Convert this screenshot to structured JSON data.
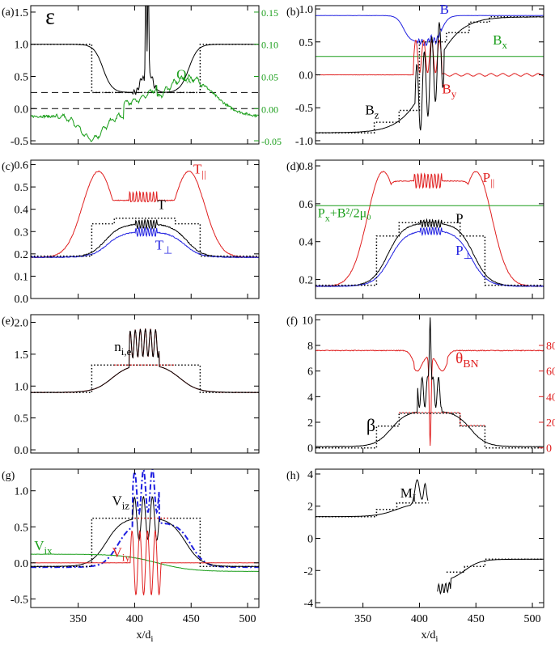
{
  "figure": {
    "xlabel": "x/d",
    "xlabel_sub": "i",
    "x_ticks": [
      "350",
      "400",
      "450",
      "500"
    ],
    "xlim": [
      308,
      510
    ]
  },
  "chart_data": [
    {
      "id": "a",
      "panel_label": "(a)",
      "type": "line",
      "ylim": [
        -0.55,
        1.6
      ],
      "y_ticks": [
        "-0.5",
        "0.0",
        "0.5",
        "1.0",
        "1.5"
      ],
      "y2lim": [
        -0.055,
        0.16
      ],
      "y2_ticks": [
        "-0.05",
        "0.00",
        "0.05",
        "0.10",
        "0.15"
      ],
      "y2_color": "#1a9e1a",
      "annotations": [
        {
          "text": "ε",
          "sub": "",
          "color": "#000",
          "x": 321,
          "y": 1.32,
          "size": 28
        },
        {
          "text": "Q",
          "sub": "x",
          "color": "#1a9e1a",
          "x": 437,
          "y": 0.46,
          "size": 17
        }
      ],
      "series": [
        {
          "style": "black",
          "kind": "tanh_well",
          "base": 1.0,
          "floor": 0.25,
          "x1": 372,
          "x2": 448,
          "width": 8,
          "spikes": [
            [
              405,
              0.05,
              2
            ],
            [
              407,
              0.2,
              2
            ],
            [
              410,
              2.0,
              0.5
            ],
            [
              412,
              1.8,
              0.5
            ],
            [
              414,
              0.25,
              2
            ],
            [
              418,
              0.05,
              3
            ]
          ]
        },
        {
          "style": "dotted",
          "kind": "steps",
          "points": [
            [
              308,
              1.0
            ],
            [
              362,
              1.0
            ],
            [
              362,
              0.25
            ],
            [
              458,
              0.25
            ],
            [
              458,
              1.0
            ],
            [
              510,
              1.0
            ]
          ]
        },
        {
          "style": "dashed",
          "kind": "hline",
          "value": 0.25
        },
        {
          "style": "dashed",
          "kind": "hline",
          "value": 0.0
        },
        {
          "style": "green",
          "kind": "qx",
          "axis": "y2"
        }
      ]
    },
    {
      "id": "b",
      "panel_label": "(b)",
      "type": "line",
      "ylim": [
        -1.05,
        1.05
      ],
      "y_ticks": [
        "-1.0",
        "-0.5",
        "0.0",
        "0.5",
        "1.0"
      ],
      "annotations": [
        {
          "text": "B",
          "sub": "",
          "color": "#2020e0",
          "x": 418,
          "y": 0.93,
          "size": 17
        },
        {
          "text": "B",
          "sub": "x",
          "color": "#1a9e1a",
          "x": 465,
          "y": 0.46,
          "size": 17
        },
        {
          "text": "B",
          "sub": "y",
          "color": "#e02020",
          "x": 420,
          "y": -0.28,
          "size": 17
        },
        {
          "text": "B",
          "sub": "z",
          "color": "#000",
          "x": 352,
          "y": -0.6,
          "size": 17
        }
      ],
      "series": [
        {
          "style": "blue",
          "kind": "tanh_well",
          "base": 0.9,
          "floor": 0.5,
          "x1": 386,
          "x2": 420,
          "width": 6,
          "spikes": [
            [
              405,
              -0.05,
              1
            ],
            [
              410,
              0.05,
              1
            ],
            [
              415,
              -0.05,
              1
            ]
          ],
          "right_base": 0.9
        },
        {
          "style": "green",
          "kind": "hline",
          "value": 0.28
        },
        {
          "style": "red",
          "kind": "by"
        },
        {
          "style": "black",
          "kind": "bz"
        },
        {
          "style": "dotted",
          "kind": "steps",
          "points": [
            [
              308,
              -0.88
            ],
            [
              360,
              -0.88
            ],
            [
              360,
              -0.72
            ],
            [
              382,
              -0.72
            ],
            [
              382,
              -0.54
            ],
            [
              400,
              -0.54
            ],
            [
              400,
              0.5
            ],
            [
              424,
              0.5
            ],
            [
              424,
              0.64
            ],
            [
              444,
              0.64
            ],
            [
              444,
              0.8
            ],
            [
              462,
              0.8
            ],
            [
              462,
              0.88
            ],
            [
              510,
              0.88
            ]
          ]
        }
      ]
    },
    {
      "id": "c",
      "panel_label": "(c)",
      "type": "line",
      "ylim": [
        0.0,
        0.62
      ],
      "y_ticks": [
        "0.0",
        "0.1",
        "0.2",
        "0.3",
        "0.4",
        "0.5",
        "0.6"
      ],
      "annotations": [
        {
          "text": "T",
          "sub": "||",
          "color": "#e02020",
          "x": 452,
          "y": 0.56,
          "size": 17
        },
        {
          "text": "T",
          "sub": "",
          "color": "#000",
          "x": 420,
          "y": 0.4,
          "size": 17
        },
        {
          "text": "T",
          "sub": "⊥",
          "color": "#2020e0",
          "x": 418,
          "y": 0.22,
          "size": 17
        }
      ],
      "series": [
        {
          "style": "red",
          "kind": "bump",
          "base": 0.185,
          "peak": 0.57,
          "mid": 0.44,
          "x1": 368,
          "x2": 448
        },
        {
          "style": "black",
          "kind": "plateau",
          "base": 0.185,
          "top": 0.335,
          "x1": 374,
          "x2": 446,
          "width": 14
        },
        {
          "style": "blue",
          "kind": "plateau",
          "base": 0.185,
          "top": 0.3,
          "x1": 376,
          "x2": 444,
          "width": 14
        },
        {
          "style": "dotted",
          "kind": "steps",
          "points": [
            [
              308,
              0.19
            ],
            [
              362,
              0.19
            ],
            [
              362,
              0.335
            ],
            [
              382,
              0.335
            ],
            [
              382,
              0.36
            ],
            [
              436,
              0.36
            ],
            [
              436,
              0.335
            ],
            [
              458,
              0.335
            ],
            [
              458,
              0.19
            ],
            [
              510,
              0.19
            ]
          ]
        }
      ]
    },
    {
      "id": "d",
      "panel_label": "(d)",
      "type": "line",
      "ylim": [
        0.1,
        0.83
      ],
      "y_ticks": [
        "0.2",
        "0.4",
        "0.6",
        "0.8"
      ],
      "annotations": [
        {
          "text": "P",
          "sub": "||",
          "color": "#e02020",
          "x": 456,
          "y": 0.715,
          "size": 17
        },
        {
          "text": "P",
          "sub": "x",
          "color": "#1a9e1a",
          "x": 310,
          "y": 0.53,
          "size": 16,
          "tail": "+B²/2μ₀"
        },
        {
          "text": "P",
          "sub": "",
          "color": "#000",
          "x": 432,
          "y": 0.5,
          "size": 17
        },
        {
          "text": "P",
          "sub": "⊥",
          "color": "#2020e0",
          "x": 432,
          "y": 0.33,
          "size": 17
        }
      ],
      "series": [
        {
          "style": "red",
          "kind": "bump",
          "base": 0.165,
          "peak": 0.77,
          "mid": 0.72,
          "x1": 368,
          "x2": 450
        },
        {
          "style": "black",
          "kind": "plateau",
          "base": 0.165,
          "top": 0.5,
          "x1": 372,
          "x2": 448,
          "width": 14
        },
        {
          "style": "blue",
          "kind": "plateau",
          "base": 0.165,
          "top": 0.46,
          "x1": 374,
          "x2": 446,
          "width": 14
        },
        {
          "style": "green",
          "kind": "hline",
          "value": 0.59
        },
        {
          "style": "dotted",
          "kind": "steps",
          "points": [
            [
              308,
              0.17
            ],
            [
              362,
              0.17
            ],
            [
              362,
              0.43
            ],
            [
              382,
              0.43
            ],
            [
              382,
              0.5
            ],
            [
              436,
              0.5
            ],
            [
              436,
              0.43
            ],
            [
              458,
              0.43
            ],
            [
              458,
              0.17
            ],
            [
              510,
              0.17
            ]
          ]
        }
      ]
    },
    {
      "id": "e",
      "panel_label": "(e)",
      "type": "line",
      "ylim": [
        -0.05,
        2.12
      ],
      "y_ticks": [
        "0.0",
        "0.5",
        "1.0",
        "1.5",
        "2.0"
      ],
      "annotations": [
        {
          "text": "n",
          "sub": "i,e",
          "color": "#000",
          "x": 382,
          "y": 1.55,
          "size": 17
        }
      ],
      "series": [
        {
          "style": "red",
          "kind": "density"
        },
        {
          "style": "black",
          "kind": "density"
        },
        {
          "style": "dotted",
          "kind": "steps",
          "points": [
            [
              308,
              0.9
            ],
            [
              362,
              0.9
            ],
            [
              362,
              1.33
            ],
            [
              458,
              1.33
            ],
            [
              458,
              0.9
            ],
            [
              510,
              0.9
            ]
          ]
        },
        {
          "style": "reddot",
          "kind": "steps",
          "points": [
            [
              382,
              1.33
            ],
            [
              436,
              1.33
            ]
          ]
        }
      ]
    },
    {
      "id": "f",
      "panel_label": "(f)",
      "type": "line",
      "ylim": [
        -0.4,
        10.4
      ],
      "y_ticks": [
        "0",
        "2",
        "4",
        "6",
        "8",
        "10"
      ],
      "y2lim": [
        -4,
        104
      ],
      "y2_ticks": [
        "0",
        "20",
        "40",
        "60",
        "80"
      ],
      "y2_color": "#e02020",
      "annotations": [
        {
          "text": "θ",
          "sub": "BN",
          "color": "#e02020",
          "x": 432,
          "y": 6.6,
          "size": 19
        },
        {
          "text": "β",
          "sub": "",
          "color": "#000",
          "x": 353,
          "y": 1.3,
          "size": 22
        }
      ],
      "series": [
        {
          "style": "red",
          "kind": "theta",
          "axis": "y2"
        },
        {
          "style": "black",
          "kind": "beta"
        },
        {
          "style": "dotted",
          "kind": "steps",
          "points": [
            [
              308,
              0.0
            ],
            [
              362,
              0.0
            ],
            [
              362,
              1.7
            ],
            [
              382,
              1.7
            ],
            [
              382,
              2.7
            ],
            [
              436,
              2.7
            ],
            [
              436,
              1.7
            ],
            [
              458,
              1.7
            ],
            [
              458,
              0.0
            ],
            [
              510,
              0.0
            ]
          ]
        },
        {
          "style": "reddot",
          "kind": "steps",
          "points": [
            [
              382,
              2.75
            ],
            [
              436,
              2.75
            ],
            [
              436,
              1.75
            ],
            [
              458,
              1.75
            ]
          ]
        }
      ]
    },
    {
      "id": "g",
      "panel_label": "(g)",
      "type": "line",
      "ylim": [
        -0.62,
        1.3
      ],
      "y_ticks": [
        "-0.5",
        "0.0",
        "0.5",
        "1.0"
      ],
      "annotations": [
        {
          "text": "V",
          "sub": "iz",
          "color": "#000",
          "x": 380,
          "y": 0.8,
          "size": 17
        },
        {
          "text": "V",
          "sub": "ix",
          "color": "#1a9e1a",
          "x": 311,
          "y": 0.18,
          "size": 17
        },
        {
          "text": "V",
          "sub": "iy",
          "color": "#e02020",
          "x": 380,
          "y": 0.08,
          "size": 17
        }
      ],
      "series": [
        {
          "style": "blue",
          "kind": "viz_dash"
        },
        {
          "style": "black",
          "kind": "viz"
        },
        {
          "style": "green",
          "kind": "vix"
        },
        {
          "style": "red",
          "kind": "viy"
        },
        {
          "style": "dotted",
          "kind": "steps",
          "points": [
            [
              308,
              -0.05
            ],
            [
              362,
              -0.05
            ],
            [
              362,
              0.62
            ],
            [
              382,
              0.62
            ],
            [
              382,
              0.62
            ],
            [
              436,
              0.62
            ],
            [
              436,
              0.62
            ],
            [
              458,
              0.62
            ],
            [
              458,
              -0.05
            ],
            [
              510,
              -0.05
            ]
          ]
        },
        {
          "style": "reddot",
          "kind": "steps",
          "points": [
            [
              400,
              0.62
            ],
            [
              430,
              0.62
            ]
          ]
        }
      ]
    },
    {
      "id": "h",
      "panel_label": "(h)",
      "type": "line",
      "ylim": [
        -4.3,
        4.3
      ],
      "y_ticks": [
        "-4",
        "-2",
        "0",
        "2",
        "4"
      ],
      "annotations": [
        {
          "text": "M",
          "sub": "I",
          "color": "#000",
          "x": 383,
          "y": 2.55,
          "size": 17
        }
      ],
      "series": [
        {
          "style": "black",
          "kind": "mach"
        },
        {
          "style": "dotted",
          "kind": "steps",
          "points": [
            [
              308,
              1.35
            ],
            [
              362,
              1.35
            ],
            [
              362,
              1.8
            ],
            [
              380,
              1.8
            ],
            [
              380,
              2.2
            ],
            [
              408,
              2.2
            ]
          ]
        },
        {
          "style": "dotted",
          "kind": "steps",
          "points": [
            [
              424,
              -2.1
            ],
            [
              440,
              -2.1
            ],
            [
              440,
              -1.75
            ],
            [
              458,
              -1.75
            ],
            [
              458,
              -1.3
            ],
            [
              510,
              -1.3
            ]
          ]
        }
      ]
    }
  ]
}
